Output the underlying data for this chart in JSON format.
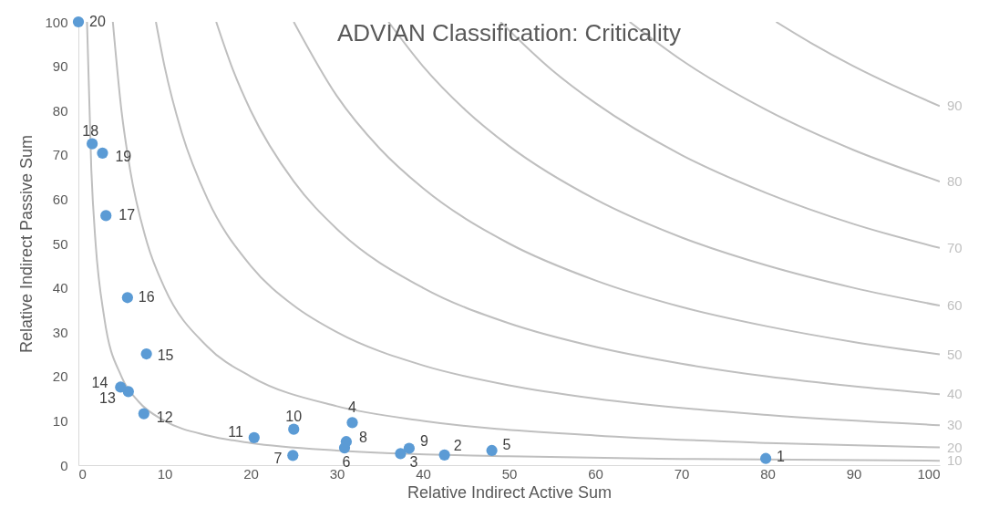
{
  "chart_data": {
    "type": "scatter",
    "title": "ADVIAN Classification: Criticality",
    "xlabel": "Relative Indirect Active Sum",
    "ylabel": "Relative Indirect Passive Sum",
    "xlim": [
      0,
      100
    ],
    "ylim": [
      0,
      100
    ],
    "xticks": [
      0,
      10,
      20,
      30,
      40,
      50,
      60,
      70,
      80,
      90,
      100
    ],
    "yticks": [
      0,
      10,
      20,
      30,
      40,
      50,
      60,
      70,
      80,
      90,
      100
    ],
    "series": [
      {
        "marker": "circle",
        "color": "#5b9bd5",
        "x": [
          79.8,
          42.5,
          37.4,
          31.8,
          48.0,
          30.9,
          24.9,
          31.1,
          38.4,
          25.0,
          20.4,
          7.6,
          5.8,
          4.9,
          7.9,
          5.7,
          3.2,
          1.6,
          2.8,
          0
        ],
        "values": [
          1.5,
          2.3,
          2.6,
          9.6,
          3.3,
          3.9,
          2.2,
          5.3,
          3.8,
          8.1,
          6.2,
          11.6,
          16.6,
          17.6,
          25.1,
          37.8,
          56.3,
          72.5,
          70.4,
          100
        ]
      },
      {
        "type": "line",
        "name": "10",
        "color": "#bfbfbf",
        "x": [
          1,
          1.5,
          2,
          3,
          5,
          7,
          10,
          15,
          20,
          30,
          50,
          70,
          100
        ],
        "values": [
          100,
          66.7,
          50,
          33.3,
          20,
          14.3,
          10,
          6.7,
          5,
          3.3,
          2,
          1.4,
          1
        ],
        "marker": "none"
      },
      {
        "type": "line",
        "name": "20",
        "color": "#bfbfbf",
        "x": [
          4,
          5,
          6,
          8,
          10,
          15,
          20,
          30,
          40,
          60,
          80,
          100
        ],
        "values": [
          100,
          80,
          66.7,
          50,
          40,
          26.7,
          20,
          13.3,
          10,
          6.7,
          5,
          4
        ],
        "marker": "none"
      },
      {
        "type": "line",
        "name": "30",
        "color": "#bfbfbf",
        "x": [
          9,
          10,
          12,
          15,
          20,
          25,
          30,
          40,
          50,
          60,
          80,
          100
        ],
        "values": [
          100,
          90,
          75,
          60,
          45,
          36,
          30,
          22.5,
          18,
          15,
          11.3,
          9
        ],
        "marker": "none"
      },
      {
        "type": "line",
        "name": "40",
        "color": "#bfbfbf",
        "x": [
          16,
          18,
          20,
          25,
          30,
          40,
          50,
          60,
          70,
          80,
          90,
          100
        ],
        "values": [
          100,
          88.9,
          80,
          64,
          53.3,
          40,
          32,
          26.7,
          22.9,
          20,
          17.8,
          16
        ],
        "marker": "none"
      },
      {
        "type": "line",
        "name": "50",
        "color": "#bfbfbf",
        "x": [
          25,
          30,
          35,
          40,
          50,
          60,
          70,
          80,
          90,
          100
        ],
        "values": [
          100,
          83.3,
          71.4,
          62.5,
          50,
          41.7,
          35.7,
          31.3,
          27.8,
          25
        ],
        "marker": "none"
      },
      {
        "type": "line",
        "name": "60",
        "color": "#bfbfbf",
        "x": [
          36,
          40,
          45,
          50,
          60,
          70,
          80,
          90,
          100
        ],
        "values": [
          100,
          90,
          80,
          72,
          60,
          51.4,
          45,
          40,
          36
        ],
        "marker": "none"
      },
      {
        "type": "line",
        "name": "70",
        "color": "#bfbfbf",
        "x": [
          49,
          55,
          60,
          70,
          80,
          90,
          100
        ],
        "values": [
          100,
          89.1,
          81.7,
          70,
          61.3,
          54.4,
          49
        ],
        "marker": "none"
      },
      {
        "type": "line",
        "name": "80",
        "color": "#bfbfbf",
        "x": [
          64,
          70,
          80,
          90,
          100
        ],
        "values": [
          100,
          91.4,
          80,
          71.1,
          64
        ],
        "marker": "none"
      },
      {
        "type": "line",
        "name": "90",
        "color": "#bfbfbf",
        "x": [
          81,
          85,
          90,
          95,
          100
        ],
        "values": [
          100,
          95.3,
          90,
          85.3,
          81
        ],
        "marker": "none"
      }
    ],
    "annotations": [
      {
        "text": "1",
        "x": 79.8,
        "y": 1.5
      },
      {
        "text": "2",
        "x": 42.5,
        "y": 2.3
      },
      {
        "text": "3",
        "x": 37.4,
        "y": 2.6
      },
      {
        "text": "4",
        "x": 31.8,
        "y": 9.6
      },
      {
        "text": "5",
        "x": 48.0,
        "y": 3.3
      },
      {
        "text": "6",
        "x": 30.9,
        "y": 3.9
      },
      {
        "text": "7",
        "x": 24.9,
        "y": 2.2
      },
      {
        "text": "8",
        "x": 31.1,
        "y": 5.3
      },
      {
        "text": "9",
        "x": 38.4,
        "y": 3.8
      },
      {
        "text": "10",
        "x": 25.0,
        "y": 8.1
      },
      {
        "text": "11",
        "x": 20.4,
        "y": 6.2
      },
      {
        "text": "12",
        "x": 7.6,
        "y": 11.6
      },
      {
        "text": "13",
        "x": 5.8,
        "y": 16.6
      },
      {
        "text": "14",
        "x": 4.9,
        "y": 17.6
      },
      {
        "text": "15",
        "x": 7.9,
        "y": 25.1
      },
      {
        "text": "16",
        "x": 5.7,
        "y": 37.8
      },
      {
        "text": "17",
        "x": 3.2,
        "y": 56.3
      },
      {
        "text": "18",
        "x": 1.6,
        "y": 72.5
      },
      {
        "text": "19",
        "x": 2.8,
        "y": 70.4
      },
      {
        "text": "20",
        "x": 0,
        "y": 100
      }
    ]
  }
}
